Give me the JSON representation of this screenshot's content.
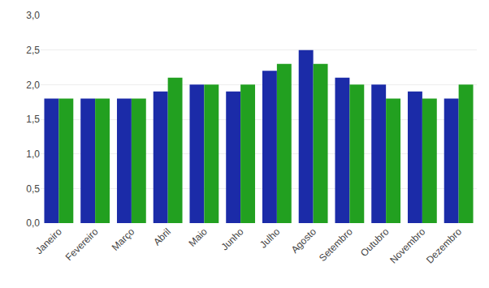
{
  "chart_data": {
    "type": "bar",
    "categories": [
      "Janeiro",
      "Fevereiro",
      "Março",
      "Abril",
      "Maio",
      "Junho",
      "Julho",
      "Agosto",
      "Setembro",
      "Outubro",
      "Novembro",
      "Dezembro"
    ],
    "series": [
      {
        "color": "#1B2BA8",
        "values": [
          1.8,
          1.8,
          1.8,
          1.9,
          2.0,
          1.9,
          2.2,
          2.5,
          2.1,
          2.0,
          1.9,
          1.8
        ]
      },
      {
        "color": "#22A020",
        "values": [
          1.8,
          1.8,
          1.8,
          2.1,
          2.0,
          2.0,
          2.3,
          2.3,
          2.0,
          1.8,
          1.8,
          2.0
        ]
      }
    ],
    "ylim": [
      0.0,
      3.0
    ],
    "yticks": [
      {
        "value": 0.0,
        "label": "0,0"
      },
      {
        "value": 0.5,
        "label": "0,5"
      },
      {
        "value": 1.0,
        "label": "1,0"
      },
      {
        "value": 1.5,
        "label": "1,5"
      },
      {
        "value": 2.0,
        "label": "2,0"
      },
      {
        "value": 2.5,
        "label": "2,5"
      },
      {
        "value": 3.0,
        "label": "3,0"
      }
    ],
    "grid": true
  }
}
